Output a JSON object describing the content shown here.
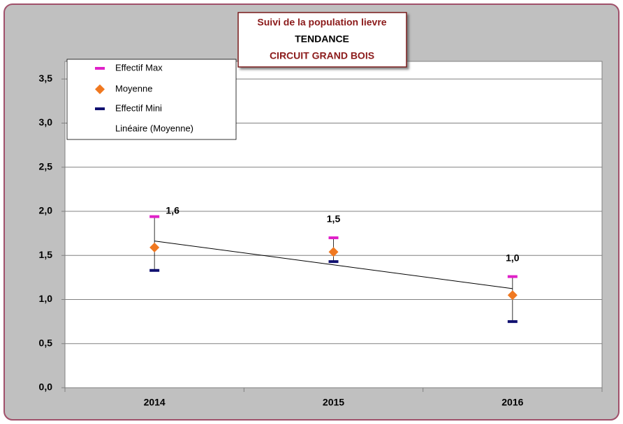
{
  "chart_data": {
    "type": "hilo",
    "title_lines": [
      "Suivi de la population lievre",
      "TENDANCE",
      "CIRCUIT GRAND BOIS"
    ],
    "categories": [
      "2014",
      "2015",
      "2016"
    ],
    "series": [
      {
        "name": "Effectif Max",
        "color": "#e020c8",
        "marker": "dash",
        "values": [
          1.94,
          1.7,
          1.26
        ]
      },
      {
        "name": "Moyenne",
        "color": "#f07820",
        "marker": "diamond",
        "values": [
          1.59,
          1.54,
          1.05
        ],
        "value_labels": [
          "1,6",
          "1,5",
          "1,0"
        ]
      },
      {
        "name": "Effectif Mini",
        "color": "#101070",
        "marker": "dash",
        "values": [
          1.33,
          1.43,
          0.75
        ]
      }
    ],
    "trendline": {
      "name": "Linéaire (Moyenne)",
      "color": "#000000"
    },
    "ylim": [
      0,
      3.7
    ],
    "yticks": [
      {
        "value": 0,
        "label": "0,0"
      },
      {
        "value": 0.5,
        "label": "0,5"
      },
      {
        "value": 1,
        "label": "1,0"
      },
      {
        "value": 1.5,
        "label": "1,5"
      },
      {
        "value": 2,
        "label": "2,0"
      },
      {
        "value": 2.5,
        "label": "2,5"
      },
      {
        "value": 3,
        "label": "3,0"
      },
      {
        "value": 3.5,
        "label": "3,5"
      }
    ],
    "grid": true,
    "legend": "top-left"
  }
}
